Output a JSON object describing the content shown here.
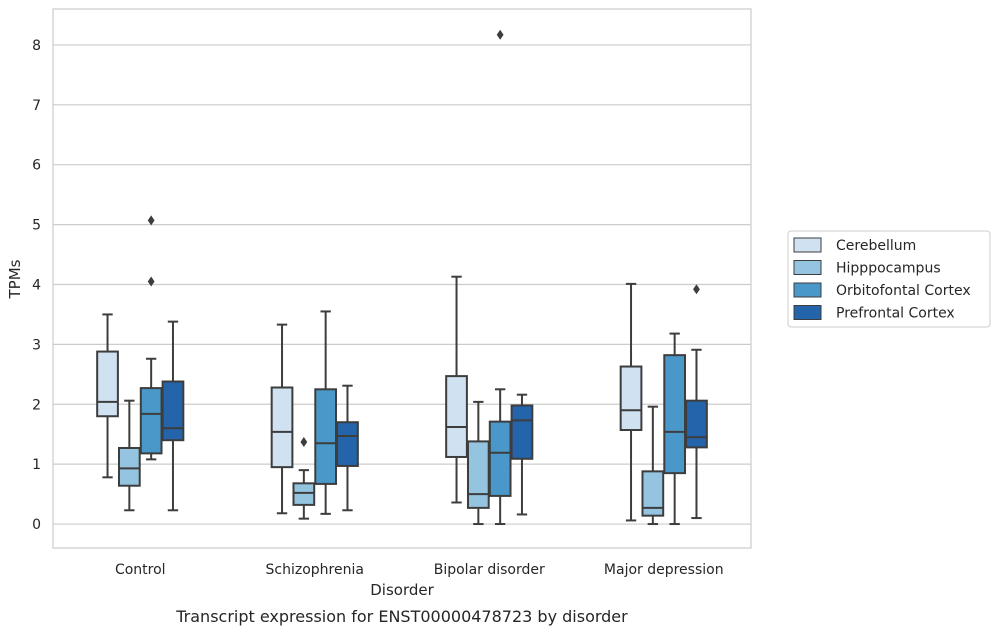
{
  "chart_data": {
    "type": "boxplot",
    "caption": "Transcript expression for ENST00000478723 by disorder",
    "xlabel": "Disorder",
    "ylabel": "TPMs",
    "ylim": [
      -0.4,
      8.6
    ],
    "yticks": [
      0,
      1,
      2,
      3,
      4,
      5,
      6,
      7,
      8
    ],
    "grid": "horizontal",
    "legend_position": "right",
    "categories": [
      "Control",
      "Schizophrenia",
      "Bipolar disorder",
      "Major depression"
    ],
    "series": [
      {
        "name": "Cerebellum",
        "color": "#d0e1f2",
        "boxes": [
          {
            "whislo": 0.78,
            "q1": 1.8,
            "med": 2.04,
            "q3": 2.88,
            "whishi": 3.5,
            "fliers": []
          },
          {
            "whislo": 0.18,
            "q1": 0.95,
            "med": 1.54,
            "q3": 2.28,
            "whishi": 3.33,
            "fliers": []
          },
          {
            "whislo": 0.36,
            "q1": 1.12,
            "med": 1.62,
            "q3": 2.47,
            "whishi": 4.13,
            "fliers": []
          },
          {
            "whislo": 0.06,
            "q1": 1.57,
            "med": 1.9,
            "q3": 2.63,
            "whishi": 4.01,
            "fliers": []
          }
        ]
      },
      {
        "name": "Hipppocampus",
        "color": "#94c4df",
        "boxes": [
          {
            "whislo": 0.23,
            "q1": 0.64,
            "med": 0.93,
            "q3": 1.27,
            "whishi": 2.06,
            "fliers": []
          },
          {
            "whislo": 0.09,
            "q1": 0.32,
            "med": 0.52,
            "q3": 0.68,
            "whishi": 0.9,
            "fliers": [
              1.37
            ]
          },
          {
            "whislo": 0.0,
            "q1": 0.27,
            "med": 0.5,
            "q3": 1.38,
            "whishi": 2.04,
            "fliers": []
          },
          {
            "whislo": 0.0,
            "q1": 0.14,
            "med": 0.27,
            "q3": 0.88,
            "whishi": 1.96,
            "fliers": []
          }
        ]
      },
      {
        "name": "Orbitofontal Cortex",
        "color": "#4a98c9",
        "boxes": [
          {
            "whislo": 1.08,
            "q1": 1.18,
            "med": 1.84,
            "q3": 2.27,
            "whishi": 2.76,
            "fliers": [
              4.05,
              5.07
            ]
          },
          {
            "whislo": 0.17,
            "q1": 0.67,
            "med": 1.35,
            "q3": 2.25,
            "whishi": 3.55,
            "fliers": []
          },
          {
            "whislo": 0.0,
            "q1": 0.47,
            "med": 1.19,
            "q3": 1.71,
            "whishi": 2.25,
            "fliers": [
              8.17
            ]
          },
          {
            "whislo": 0.0,
            "q1": 0.85,
            "med": 1.54,
            "q3": 2.82,
            "whishi": 3.18,
            "fliers": []
          }
        ]
      },
      {
        "name": "Prefrontal Cortex",
        "color": "#2464ab",
        "boxes": [
          {
            "whislo": 0.23,
            "q1": 1.4,
            "med": 1.6,
            "q3": 2.38,
            "whishi": 3.38,
            "fliers": []
          },
          {
            "whislo": 0.23,
            "q1": 0.97,
            "med": 1.47,
            "q3": 1.7,
            "whishi": 2.31,
            "fliers": []
          },
          {
            "whislo": 0.16,
            "q1": 1.09,
            "med": 1.73,
            "q3": 1.98,
            "whishi": 2.16,
            "fliers": []
          },
          {
            "whislo": 0.1,
            "q1": 1.28,
            "med": 1.45,
            "q3": 2.06,
            "whishi": 2.91,
            "fliers": [
              3.92
            ]
          }
        ]
      }
    ]
  }
}
